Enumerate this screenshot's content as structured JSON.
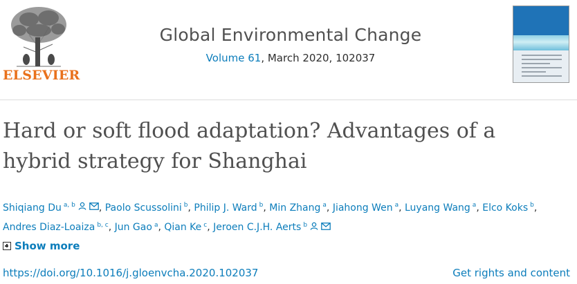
{
  "publisher": {
    "name": "ELSEVIER"
  },
  "journal": {
    "title": "Global Environmental Change",
    "volume_link": "Volume 61",
    "issue_info": ", March 2020, 102037"
  },
  "article": {
    "title": "Hard or soft flood adaptation? Advantages of a hybrid strategy for Shanghai"
  },
  "authors": [
    {
      "name": "Shiqiang Du",
      "aff": "a, b",
      "icons": [
        "person-icon",
        "envelope-icon"
      ],
      "sep": ","
    },
    {
      "name": "Paolo Scussolini",
      "aff": "b",
      "icons": [],
      "sep": ","
    },
    {
      "name": "Philip J. Ward",
      "aff": "b",
      "icons": [],
      "sep": ","
    },
    {
      "name": "Min Zhang",
      "aff": "a",
      "icons": [],
      "sep": ","
    },
    {
      "name": "Jiahong Wen",
      "aff": "a",
      "icons": [],
      "sep": ","
    },
    {
      "name": "Luyang Wang",
      "aff": "a",
      "icons": [],
      "sep": ","
    },
    {
      "name": "Elco Koks",
      "aff": "b",
      "icons": [],
      "sep": ","
    },
    {
      "name": "Andres Diaz-Loaiza",
      "aff": "b, c",
      "icons": [],
      "sep": ","
    },
    {
      "name": "Jun Gao",
      "aff": "a",
      "icons": [],
      "sep": ","
    },
    {
      "name": "Qian Ke",
      "aff": "c",
      "icons": [],
      "sep": ","
    },
    {
      "name": "Jeroen C.J.H. Aerts",
      "aff": "b",
      "icons": [
        "person-icon",
        "envelope-icon"
      ],
      "sep": ""
    }
  ],
  "show_more": "Show more",
  "doi": "https://doi.org/10.1016/j.gloenvcha.2020.102037",
  "rights": "Get rights and content",
  "colors": {
    "link": "#0c7dbb",
    "brand": "#e9711c",
    "title": "#505050"
  }
}
